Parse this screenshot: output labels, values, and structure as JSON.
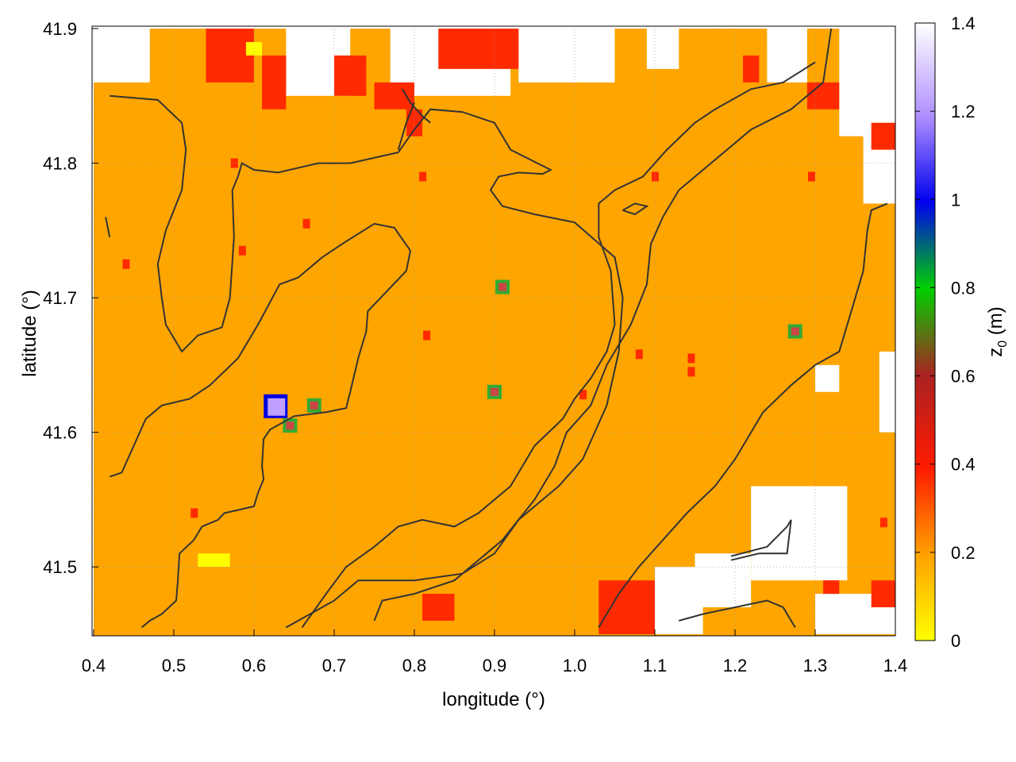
{
  "chart_data": {
    "type": "heatmap",
    "title": "",
    "xlabel": "longitude (°)",
    "ylabel": "latitude (°)",
    "colorbar_label": "z0 (m)",
    "colorbar_label_main": "z",
    "colorbar_label_sub": "0",
    "colorbar_label_unit": " (m)",
    "xlim": [
      0.4,
      1.4
    ],
    "ylim": [
      41.45,
      41.9
    ],
    "x_ticks": [
      "0.4",
      "0.5",
      "0.6",
      "0.7",
      "0.8",
      "0.9",
      "1.0",
      "1.1",
      "1.2",
      "1.3",
      "1.4"
    ],
    "y_ticks": [
      "41.5",
      "41.6",
      "41.7",
      "41.8",
      "41.9"
    ],
    "colorbar_range": [
      0,
      1.4
    ],
    "colorbar_ticks": [
      "0",
      "0.2",
      "0.4",
      "0.6",
      "0.8",
      "1",
      "1.2",
      "1.4"
    ],
    "grid": true,
    "colors": {
      "background_value": "#ffa500",
      "high_value": "#ff2a00",
      "very_low": "#ffff00",
      "no_data": "#ffffff",
      "contour": "#333333",
      "gradient": [
        "#ffff00",
        "#ff9d00",
        "#ff1800",
        "#b22222",
        "#00c800",
        "#0000e6",
        "#b48cff",
        "#ffffff"
      ]
    },
    "patches": [
      {
        "kind": "no_data",
        "lon": [
          0.4,
          0.47
        ],
        "lat": [
          41.86,
          41.9
        ]
      },
      {
        "kind": "no_data",
        "lon": [
          0.64,
          0.72
        ],
        "lat": [
          41.85,
          41.9
        ]
      },
      {
        "kind": "no_data",
        "lon": [
          0.77,
          0.92
        ],
        "lat": [
          41.85,
          41.9
        ]
      },
      {
        "kind": "no_data",
        "lon": [
          0.93,
          1.05
        ],
        "lat": [
          41.86,
          41.9
        ]
      },
      {
        "kind": "no_data",
        "lon": [
          1.09,
          1.13
        ],
        "lat": [
          41.87,
          41.9
        ]
      },
      {
        "kind": "no_data",
        "lon": [
          1.24,
          1.29
        ],
        "lat": [
          41.86,
          41.9
        ]
      },
      {
        "kind": "no_data",
        "lon": [
          1.33,
          1.4
        ],
        "lat": [
          41.82,
          41.9
        ]
      },
      {
        "kind": "no_data",
        "lon": [
          1.36,
          1.4
        ],
        "lat": [
          41.77,
          41.83
        ]
      },
      {
        "kind": "no_data",
        "lon": [
          1.38,
          1.4
        ],
        "lat": [
          41.6,
          41.66
        ]
      },
      {
        "kind": "no_data",
        "lon": [
          1.22,
          1.34
        ],
        "lat": [
          41.49,
          41.56
        ]
      },
      {
        "kind": "no_data",
        "lon": [
          1.15,
          1.22
        ],
        "lat": [
          41.47,
          41.51
        ]
      },
      {
        "kind": "no_data",
        "lon": [
          1.1,
          1.16
        ],
        "lat": [
          41.45,
          41.5
        ]
      },
      {
        "kind": "no_data",
        "lon": [
          1.3,
          1.4
        ],
        "lat": [
          41.45,
          41.48
        ]
      },
      {
        "kind": "no_data",
        "lon": [
          1.3,
          1.33
        ],
        "lat": [
          41.63,
          41.65
        ]
      },
      {
        "kind": "high",
        "lon": [
          0.54,
          0.6
        ],
        "lat": [
          41.86,
          41.9
        ]
      },
      {
        "kind": "high",
        "lon": [
          0.61,
          0.64
        ],
        "lat": [
          41.84,
          41.88
        ]
      },
      {
        "kind": "high",
        "lon": [
          0.7,
          0.74
        ],
        "lat": [
          41.85,
          41.88
        ]
      },
      {
        "kind": "high",
        "lon": [
          0.75,
          0.8
        ],
        "lat": [
          41.84,
          41.86
        ]
      },
      {
        "kind": "high",
        "lon": [
          0.83,
          0.93
        ],
        "lat": [
          41.87,
          41.9
        ]
      },
      {
        "kind": "high",
        "lon": [
          0.79,
          0.81
        ],
        "lat": [
          41.82,
          41.84
        ]
      },
      {
        "kind": "high",
        "lon": [
          1.21,
          1.23
        ],
        "lat": [
          41.86,
          41.88
        ]
      },
      {
        "kind": "high",
        "lon": [
          1.29,
          1.33
        ],
        "lat": [
          41.84,
          41.86
        ]
      },
      {
        "kind": "high",
        "lon": [
          1.37,
          1.4
        ],
        "lat": [
          41.81,
          41.83
        ]
      },
      {
        "kind": "high",
        "lon": [
          1.03,
          1.1
        ],
        "lat": [
          41.45,
          41.49
        ]
      },
      {
        "kind": "high",
        "lon": [
          0.81,
          0.85
        ],
        "lat": [
          41.46,
          41.48
        ]
      },
      {
        "kind": "high",
        "lon": [
          1.37,
          1.4
        ],
        "lat": [
          41.47,
          41.49
        ]
      },
      {
        "kind": "high",
        "lon": [
          1.31,
          1.33
        ],
        "lat": [
          41.48,
          41.49
        ]
      },
      {
        "kind": "very_low",
        "lon": [
          0.53,
          0.57
        ],
        "lat": [
          41.5,
          41.51
        ]
      },
      {
        "kind": "very_low",
        "lon": [
          0.59,
          0.61
        ],
        "lat": [
          41.88,
          41.89
        ]
      }
    ],
    "pixels": [
      {
        "kind": "high",
        "lon": 0.81,
        "lat": 41.79
      },
      {
        "kind": "high",
        "lon": 0.575,
        "lat": 41.8
      },
      {
        "kind": "high",
        "lon": 0.665,
        "lat": 41.755
      },
      {
        "kind": "high",
        "lon": 0.585,
        "lat": 41.735
      },
      {
        "kind": "high",
        "lon": 0.44,
        "lat": 41.725
      },
      {
        "kind": "high",
        "lon": 0.815,
        "lat": 41.672
      },
      {
        "kind": "high",
        "lon": 1.08,
        "lat": 41.658
      },
      {
        "kind": "high",
        "lon": 1.145,
        "lat": 41.655
      },
      {
        "kind": "high",
        "lon": 1.145,
        "lat": 41.645
      },
      {
        "kind": "high",
        "lon": 1.01,
        "lat": 41.628
      },
      {
        "kind": "high",
        "lon": 0.525,
        "lat": 41.54
      },
      {
        "kind": "high",
        "lon": 1.1,
        "lat": 41.79
      },
      {
        "kind": "high",
        "lon": 1.295,
        "lat": 41.79
      },
      {
        "kind": "high",
        "lon": 1.385,
        "lat": 41.533
      },
      {
        "kind": "mixed",
        "lon": 0.91,
        "lat": 41.708
      },
      {
        "kind": "mixed",
        "lon": 0.9,
        "lat": 41.63
      },
      {
        "kind": "mixed",
        "lon": 0.675,
        "lat": 41.62
      },
      {
        "kind": "mixed",
        "lon": 1.275,
        "lat": 41.675
      },
      {
        "kind": "mixed",
        "lon": 0.645,
        "lat": 41.605
      },
      {
        "kind": "peak",
        "lon": 0.627,
        "lat": 41.62
      }
    ],
    "contour_lines": [
      [
        [
          0.42,
          41.85
        ],
        [
          0.48,
          41.847
        ],
        [
          0.51,
          41.83
        ],
        [
          0.515,
          41.81
        ],
        [
          0.51,
          41.78
        ],
        [
          0.49,
          41.75
        ],
        [
          0.48,
          41.725
        ],
        [
          0.485,
          41.7
        ],
        [
          0.49,
          41.68
        ],
        [
          0.51,
          41.66
        ],
        [
          0.53,
          41.672
        ],
        [
          0.56,
          41.678
        ],
        [
          0.57,
          41.7
        ],
        [
          0.575,
          41.745
        ],
        [
          0.573,
          41.78
        ],
        [
          0.58,
          41.79
        ],
        [
          0.585,
          41.8
        ],
        [
          0.6,
          41.795
        ],
        [
          0.63,
          41.793
        ],
        [
          0.68,
          41.8
        ],
        [
          0.72,
          41.8
        ],
        [
          0.78,
          41.808
        ],
        [
          0.8,
          41.825
        ],
        [
          0.82,
          41.84
        ],
        [
          0.86,
          41.838
        ],
        [
          0.9,
          41.83
        ],
        [
          0.92,
          41.81
        ],
        [
          0.97,
          41.795
        ],
        [
          0.96,
          41.792
        ],
        [
          0.93,
          41.793
        ],
        [
          0.905,
          41.79
        ],
        [
          0.895,
          41.78
        ],
        [
          0.91,
          41.768
        ],
        [
          0.95,
          41.762
        ],
        [
          1.0,
          41.756
        ],
        [
          1.05,
          41.73
        ],
        [
          1.06,
          41.7
        ],
        [
          1.055,
          41.66
        ],
        [
          1.04,
          41.62
        ],
        [
          1.01,
          41.58
        ],
        [
          0.98,
          41.56
        ],
        [
          0.93,
          41.535
        ],
        [
          0.9,
          41.51
        ],
        [
          0.86,
          41.495
        ],
        [
          0.8,
          41.49
        ],
        [
          0.73,
          41.49
        ],
        [
          0.7,
          41.475
        ],
        [
          0.64,
          41.455
        ]
      ],
      [
        [
          0.42,
          41.567
        ],
        [
          0.435,
          41.57
        ],
        [
          0.45,
          41.59
        ],
        [
          0.465,
          41.61
        ],
        [
          0.485,
          41.62
        ],
        [
          0.52,
          41.625
        ],
        [
          0.545,
          41.635
        ],
        [
          0.58,
          41.655
        ],
        [
          0.605,
          41.68
        ],
        [
          0.632,
          41.71
        ],
        [
          0.655,
          41.715
        ],
        [
          0.685,
          41.73
        ],
        [
          0.71,
          41.74
        ],
        [
          0.75,
          41.755
        ],
        [
          0.775,
          41.752
        ],
        [
          0.795,
          41.735
        ],
        [
          0.79,
          41.72
        ],
        [
          0.742,
          41.69
        ],
        [
          0.74,
          41.675
        ],
        [
          0.73,
          41.655
        ],
        [
          0.72,
          41.63
        ],
        [
          0.715,
          41.618
        ],
        [
          0.69,
          41.615
        ],
        [
          0.65,
          41.612
        ],
        [
          0.62,
          41.602
        ],
        [
          0.612,
          41.595
        ],
        [
          0.61,
          41.575
        ],
        [
          0.612,
          41.565
        ],
        [
          0.605,
          41.555
        ],
        [
          0.6,
          41.545
        ],
        [
          0.578,
          41.542
        ],
        [
          0.563,
          41.54
        ],
        [
          0.555,
          41.535
        ],
        [
          0.535,
          41.53
        ],
        [
          0.525,
          41.52
        ],
        [
          0.507,
          41.51
        ],
        [
          0.505,
          41.49
        ],
        [
          0.503,
          41.475
        ],
        [
          0.485,
          41.465
        ],
        [
          0.47,
          41.46
        ],
        [
          0.46,
          41.455
        ]
      ],
      [
        [
          0.66,
          41.455
        ],
        [
          0.69,
          41.48
        ],
        [
          0.715,
          41.5
        ],
        [
          0.75,
          41.515
        ],
        [
          0.78,
          41.53
        ],
        [
          0.81,
          41.535
        ],
        [
          0.85,
          41.53
        ],
        [
          0.88,
          41.54
        ],
        [
          0.92,
          41.56
        ],
        [
          0.95,
          41.59
        ],
        [
          0.985,
          41.61
        ],
        [
          1.0,
          41.625
        ],
        [
          1.02,
          41.64
        ],
        [
          1.04,
          41.66
        ],
        [
          1.05,
          41.68
        ],
        [
          1.045,
          41.72
        ],
        [
          1.03,
          41.745
        ],
        [
          1.03,
          41.77
        ],
        [
          1.05,
          41.78
        ],
        [
          1.085,
          41.79
        ],
        [
          1.1,
          41.8
        ],
        [
          1.115,
          41.81
        ],
        [
          1.15,
          41.83
        ],
        [
          1.175,
          41.84
        ],
        [
          1.22,
          41.855
        ],
        [
          1.26,
          41.86
        ],
        [
          1.3,
          41.875
        ]
      ],
      [
        [
          0.75,
          41.46
        ],
        [
          0.76,
          41.475
        ],
        [
          0.8,
          41.48
        ],
        [
          0.85,
          41.49
        ],
        [
          0.87,
          41.5
        ],
        [
          0.91,
          41.52
        ],
        [
          0.95,
          41.55
        ],
        [
          0.975,
          41.575
        ],
        [
          0.99,
          41.6
        ],
        [
          1.02,
          41.62
        ],
        [
          1.04,
          41.65
        ],
        [
          1.07,
          41.68
        ],
        [
          1.09,
          41.71
        ],
        [
          1.095,
          41.74
        ],
        [
          1.11,
          41.76
        ],
        [
          1.13,
          41.78
        ],
        [
          1.17,
          41.8
        ],
        [
          1.22,
          41.825
        ],
        [
          1.27,
          41.84
        ],
        [
          1.31,
          41.86
        ],
        [
          1.32,
          41.9
        ]
      ],
      [
        [
          1.03,
          41.455
        ],
        [
          1.055,
          41.48
        ],
        [
          1.08,
          41.5
        ],
        [
          1.11,
          41.52
        ],
        [
          1.14,
          41.54
        ],
        [
          1.175,
          41.56
        ],
        [
          1.2,
          41.58
        ],
        [
          1.22,
          41.6
        ],
        [
          1.235,
          41.615
        ],
        [
          1.27,
          41.635
        ],
        [
          1.3,
          41.65
        ],
        [
          1.33,
          41.66
        ],
        [
          1.345,
          41.69
        ],
        [
          1.36,
          41.72
        ],
        [
          1.365,
          41.75
        ],
        [
          1.37,
          41.765
        ],
        [
          1.39,
          41.77
        ]
      ],
      [
        [
          1.13,
          41.46
        ],
        [
          1.16,
          41.465
        ],
        [
          1.2,
          41.47
        ],
        [
          1.24,
          41.475
        ],
        [
          1.26,
          41.47
        ],
        [
          1.275,
          41.455
        ]
      ],
      [
        [
          1.195,
          41.505
        ],
        [
          1.23,
          41.51
        ],
        [
          1.265,
          41.51
        ],
        [
          1.27,
          41.535
        ],
        [
          1.265,
          41.53
        ],
        [
          1.24,
          41.515
        ],
        [
          1.195,
          41.508
        ]
      ],
      [
        [
          1.06,
          41.765
        ],
        [
          1.075,
          41.77
        ],
        [
          1.09,
          41.768
        ],
        [
          1.075,
          41.762
        ],
        [
          1.06,
          41.765
        ]
      ],
      [
        [
          0.415,
          41.76
        ],
        [
          0.42,
          41.745
        ]
      ],
      [
        [
          0.785,
          41.855
        ],
        [
          0.795,
          41.845
        ],
        [
          0.81,
          41.835
        ],
        [
          0.82,
          41.83
        ]
      ],
      [
        [
          0.78,
          41.81
        ],
        [
          0.79,
          41.83
        ],
        [
          0.8,
          41.845
        ]
      ]
    ]
  }
}
